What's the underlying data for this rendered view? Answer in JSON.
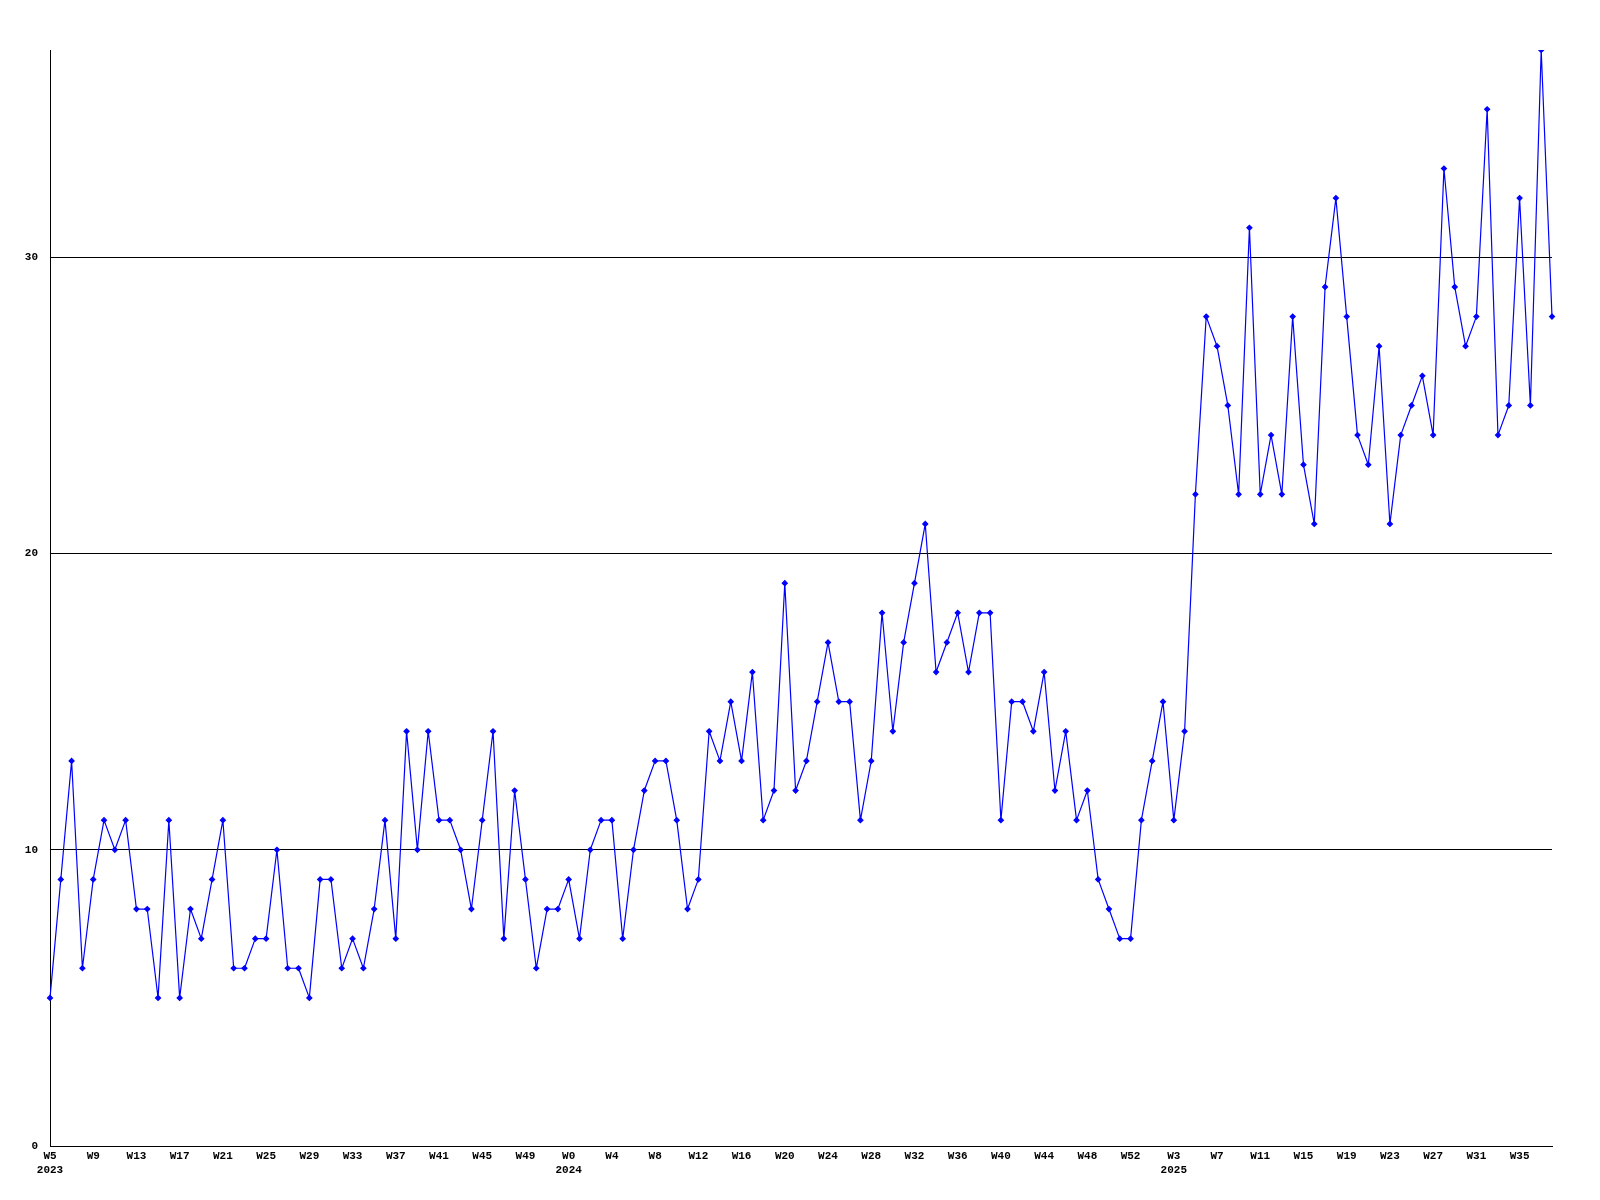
{
  "chart_data": {
    "type": "line",
    "categories": [
      "W5\n2023",
      null,
      null,
      null,
      "W9",
      null,
      null,
      null,
      "W13",
      null,
      null,
      null,
      "W17",
      null,
      null,
      null,
      "W21",
      null,
      null,
      null,
      "W25",
      null,
      null,
      null,
      "W29",
      null,
      null,
      null,
      "W33",
      null,
      null,
      null,
      "W37",
      null,
      null,
      null,
      "W41",
      null,
      null,
      null,
      "W45",
      null,
      null,
      null,
      "W49",
      null,
      null,
      null,
      "W0\n2024",
      null,
      null,
      null,
      "W4",
      null,
      null,
      null,
      "W8",
      null,
      null,
      null,
      "W12",
      null,
      null,
      null,
      "W16",
      null,
      null,
      null,
      "W20",
      null,
      null,
      null,
      "W24",
      null,
      null,
      null,
      "W28",
      null,
      null,
      null,
      "W32",
      null,
      null,
      null,
      "W36",
      null,
      null,
      null,
      "W40",
      null,
      null,
      null,
      "W44",
      null,
      null,
      null,
      "W48",
      null,
      null,
      null,
      "W52",
      null,
      null,
      null,
      "W3\n2025",
      null,
      null,
      null,
      "W7",
      null,
      null,
      null,
      "W11",
      null,
      null,
      null,
      "W15",
      null,
      null,
      null,
      "W19",
      null,
      null,
      null,
      "W23",
      null,
      null,
      null,
      "W27",
      null,
      null,
      null,
      "W31",
      null,
      null,
      null,
      "W35",
      null,
      null,
      null
    ],
    "series": [
      {
        "color": "#0000ff",
        "values": [
          5,
          9,
          13,
          6,
          9,
          11,
          10,
          11,
          8,
          8,
          5,
          11,
          5,
          8,
          7,
          9,
          11,
          6,
          6,
          7,
          7,
          10,
          6,
          6,
          5,
          9,
          9,
          6,
          7,
          6,
          8,
          11,
          7,
          14,
          10,
          14,
          11,
          11,
          10,
          8,
          11,
          14,
          7,
          12,
          9,
          6,
          8,
          8,
          9,
          7,
          10,
          11,
          11,
          7,
          10,
          12,
          13,
          13,
          11,
          8,
          9,
          14,
          13,
          15,
          13,
          16,
          11,
          12,
          19,
          12,
          13,
          15,
          17,
          15,
          15,
          11,
          13,
          18,
          14,
          17,
          19,
          21,
          16,
          17,
          18,
          16,
          18,
          18,
          11,
          15,
          15,
          14,
          16,
          12,
          14,
          11,
          12,
          9,
          8,
          7,
          7,
          11,
          13,
          15,
          11,
          14,
          22,
          28,
          27,
          25,
          22,
          31,
          22,
          24,
          22,
          28,
          23,
          21,
          29,
          32,
          28,
          24,
          23,
          27,
          21,
          24,
          25,
          26,
          24,
          33,
          29,
          27,
          28,
          35,
          24,
          25,
          32,
          25,
          37,
          28
        ]
      }
    ],
    "ylim": [
      0,
      37
    ],
    "yticks": [
      0,
      10,
      20,
      30
    ],
    "grid": "y",
    "legend": false,
    "marker": "diamond",
    "line_style": "solid"
  }
}
